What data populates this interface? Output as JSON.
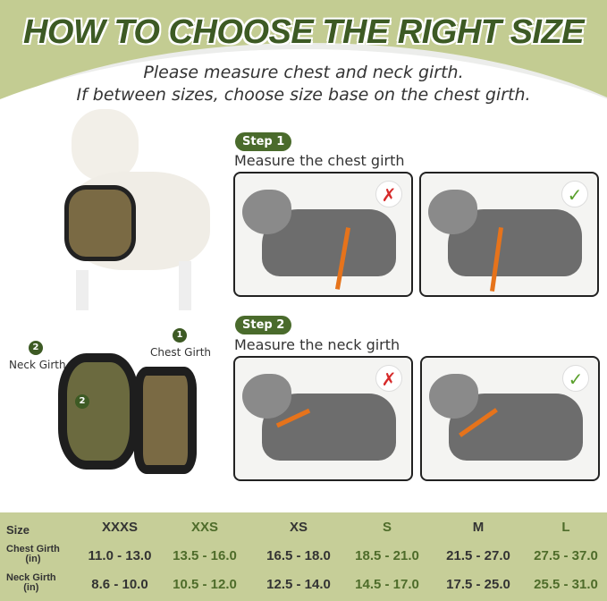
{
  "header": {
    "title": "HOW TO CHOOSE THE RIGHT SIZE",
    "line1": "Please measure chest and neck girth.",
    "line2": "If between sizes, choose size base on the chest girth."
  },
  "steps": [
    {
      "badge": "Step 1",
      "text": "Measure the chest girth",
      "wrong": "✗",
      "right": "✓"
    },
    {
      "badge": "Step 2",
      "text": "Measure the neck girth",
      "wrong": "✗",
      "right": "✓"
    }
  ],
  "harness": {
    "label1_num": "1",
    "label1": "Chest Girth",
    "label2_num": "2",
    "label2": "Neck Girth",
    "marker2": "2"
  },
  "colors": {
    "brand": "#3d5a24",
    "band": "#c3cc92",
    "strap": "#e6731b",
    "check": "#5aa02c",
    "cross": "#d62a2a"
  },
  "table": {
    "size_label": "Size",
    "sizes": [
      "XXXS",
      "XXS",
      "XS",
      "S",
      "M",
      "L"
    ],
    "chest_label": "Chest Girth",
    "chest_unit": "(in)",
    "chest": [
      "11.0 - 13.0",
      "13.5 - 16.0",
      "16.5 - 18.0",
      "18.5 - 21.0",
      "21.5 - 27.0",
      "27.5 - 37.0"
    ],
    "neck_label": "Neck Girth",
    "neck_unit": "(in)",
    "neck": [
      "8.6 - 10.0",
      "10.5 - 12.0",
      "12.5 - 14.0",
      "14.5 - 17.0",
      "17.5 - 25.0",
      "25.5 - 31.0"
    ]
  }
}
